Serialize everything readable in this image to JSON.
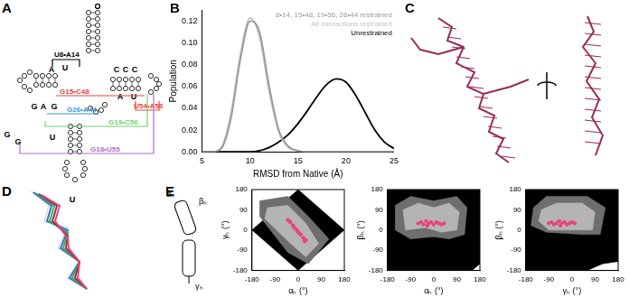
{
  "panels": [
    "A",
    "B",
    "C",
    "D",
    "E"
  ],
  "diagram": {
    "nucleotides": [
      "A",
      "U",
      "G",
      "A",
      "G",
      "G",
      "G",
      "U",
      "C",
      "C",
      "C",
      "A",
      "U",
      "U"
    ],
    "interactions": [
      {
        "label": "U8•A14",
        "color": "#000000"
      },
      {
        "label": "G15•C48",
        "color": "#e8453c"
      },
      {
        "label": "U54•A58",
        "color": "#e8453c"
      },
      {
        "label": "G26•A44",
        "color": "#3a8fd8"
      },
      {
        "label": "G19•C56",
        "color": "#6fd36f"
      },
      {
        "label": "G18•U55",
        "color": "#b070d0"
      }
    ],
    "helix_angles": [
      "αₕ",
      "βₕ",
      "γₕ"
    ]
  },
  "chart_data": [
    {
      "type": "line",
      "x_label": "RMSD from Native (Å)",
      "y_label": "Population",
      "x": [
        5,
        6,
        7,
        8,
        9,
        10,
        11,
        12,
        13,
        14,
        15,
        16,
        17,
        18,
        19,
        20,
        21,
        22,
        23,
        24,
        25
      ],
      "xlim": [
        5,
        25
      ],
      "xticks": [
        5,
        10,
        15,
        20,
        25
      ],
      "ylim": [
        0,
        0.13
      ],
      "yticks": [
        {
          "value": 0,
          "label": "0.00"
        },
        {
          "value": 0.02,
          "label": "0.02"
        },
        {
          "value": 0.04,
          "label": "0.04"
        },
        {
          "value": 0.06,
          "label": "0.06"
        },
        {
          "value": 0.08,
          "label": "0.08"
        },
        {
          "value": 0.1,
          "label": "0.10"
        },
        {
          "value": 0.12,
          "label": "0.12"
        }
      ],
      "grid": false,
      "legend": "upper right",
      "series": [
        {
          "name": "8•14, 15•48, 19•56, 26•44 restrained",
          "color": "#999999",
          "values": [
            0,
            0,
            0.003,
            0.03,
            0.085,
            0.12,
            0.11,
            0.06,
            0.02,
            0.005,
            0.001,
            0,
            0,
            0,
            0,
            0,
            0,
            0,
            0,
            0,
            0
          ]
        },
        {
          "name": "All interactions restrained",
          "color": "#c4c4c4",
          "values": [
            0,
            0,
            0.004,
            0.035,
            0.09,
            0.123,
            0.105,
            0.055,
            0.018,
            0.004,
            0.001,
            0,
            0,
            0,
            0,
            0,
            0,
            0,
            0,
            0,
            0
          ]
        },
        {
          "name": "Unrestrained",
          "color": "#000000",
          "values": [
            0,
            0,
            0,
            0,
            0,
            0,
            0.001,
            0.004,
            0.009,
            0.016,
            0.026,
            0.038,
            0.051,
            0.062,
            0.067,
            0.064,
            0.052,
            0.036,
            0.02,
            0.009,
            0.003
          ]
        }
      ]
    },
    {
      "type": "scatter",
      "x_label": "αₕ (°)",
      "y_label": "γₕ (°)",
      "xlim": [
        -180,
        180
      ],
      "xticks": [
        -180,
        -90,
        0,
        90,
        180
      ],
      "ylim": [
        -180,
        180
      ],
      "yticks": [
        -180,
        -90,
        0,
        90,
        180
      ],
      "grid": false,
      "series": [
        {
          "type": "area",
          "color": "#000000",
          "x": [
            0,
            180,
            0,
            -180,
            0
          ],
          "values": [
            180,
            0,
            -180,
            0,
            180
          ]
        },
        {
          "type": "area",
          "color": "#6e6e6e",
          "x": [
            -150,
            -40,
            40,
            120,
            40,
            -40,
            -150,
            -150
          ],
          "values": [
            130,
            150,
            60,
            -40,
            -150,
            -100,
            60,
            130
          ]
        },
        {
          "type": "area",
          "color": "#b4b4b4",
          "x": [
            -120,
            -40,
            30,
            80,
            30,
            -30,
            -130,
            -120
          ],
          "values": [
            100,
            110,
            30,
            -60,
            -120,
            -60,
            50,
            100
          ]
        },
        {
          "type": "scatter",
          "color": "#e8457a",
          "x": [
            -40,
            -35,
            -30,
            -20,
            -15,
            -5,
            0,
            5,
            10,
            20,
            25,
            30
          ],
          "values": [
            45,
            40,
            35,
            20,
            10,
            0,
            -10,
            -15,
            -20,
            -35,
            -50,
            -45
          ]
        }
      ]
    },
    {
      "type": "scatter",
      "x_label": "αₕ (°)",
      "y_label": "βₕ (°)",
      "xlim": [
        -180,
        180
      ],
      "xticks": [
        -180,
        -90,
        0,
        90,
        180
      ],
      "ylim": [
        -180,
        180
      ],
      "yticks": [
        -180,
        -90,
        0,
        90,
        180
      ],
      "grid": false,
      "series": [
        {
          "type": "area",
          "color": "#000000",
          "x": [
            -180,
            150,
            180,
            180,
            -180,
            -180
          ],
          "values": [
            -180,
            -180,
            -150,
            180,
            180,
            -180
          ]
        },
        {
          "type": "area",
          "color": "#6e6e6e",
          "x": [
            -150,
            -90,
            0,
            90,
            130,
            120,
            60,
            0,
            -90,
            -150,
            -150
          ],
          "values": [
            110,
            150,
            130,
            150,
            100,
            -20,
            -40,
            -30,
            -40,
            0,
            110
          ]
        },
        {
          "type": "area",
          "color": "#b4b4b4",
          "x": [
            -120,
            -60,
            0,
            60,
            100,
            90,
            30,
            -30,
            -110,
            -120
          ],
          "values": [
            90,
            120,
            100,
            120,
            80,
            0,
            -10,
            10,
            0,
            90
          ]
        },
        {
          "type": "scatter",
          "color": "#e8457a",
          "x": [
            -60,
            -50,
            -40,
            -30,
            -20,
            -10,
            0,
            10,
            20,
            30,
            40,
            -25
          ],
          "values": [
            30,
            35,
            25,
            40,
            30,
            35,
            25,
            35,
            30,
            25,
            30,
            20
          ]
        }
      ]
    },
    {
      "type": "scatter",
      "x_label": "γₕ (°)",
      "y_label": "βₕ (°)",
      "xlim": [
        -180,
        180
      ],
      "xticks": [
        -180,
        -90,
        0,
        90,
        180
      ],
      "ylim": [
        -180,
        180
      ],
      "yticks": [
        -180,
        -90,
        0,
        90,
        180
      ],
      "grid": false,
      "series": [
        {
          "type": "area",
          "color": "#000000",
          "x": [
            -180,
            60,
            120,
            180,
            180,
            -180,
            -180
          ],
          "values": [
            -180,
            -180,
            -150,
            -140,
            180,
            180,
            -180
          ]
        },
        {
          "type": "area",
          "color": "#6e6e6e",
          "x": [
            -150,
            -100,
            60,
            130,
            110,
            40,
            -100,
            -160,
            -150
          ],
          "values": [
            100,
            150,
            150,
            100,
            -20,
            -20,
            -10,
            20,
            100
          ]
        },
        {
          "type": "area",
          "color": "#b4b4b4",
          "x": [
            -120,
            -60,
            40,
            90,
            80,
            -90,
            -130,
            -120
          ],
          "values": [
            90,
            120,
            120,
            80,
            0,
            0,
            40,
            90
          ]
        },
        {
          "type": "scatter",
          "color": "#e8457a",
          "x": [
            -90,
            -80,
            -70,
            -60,
            -50,
            -40,
            -30,
            -20,
            -10,
            0,
            10,
            -45
          ],
          "values": [
            30,
            35,
            25,
            30,
            40,
            30,
            35,
            25,
            30,
            35,
            30,
            20
          ]
        }
      ]
    }
  ]
}
